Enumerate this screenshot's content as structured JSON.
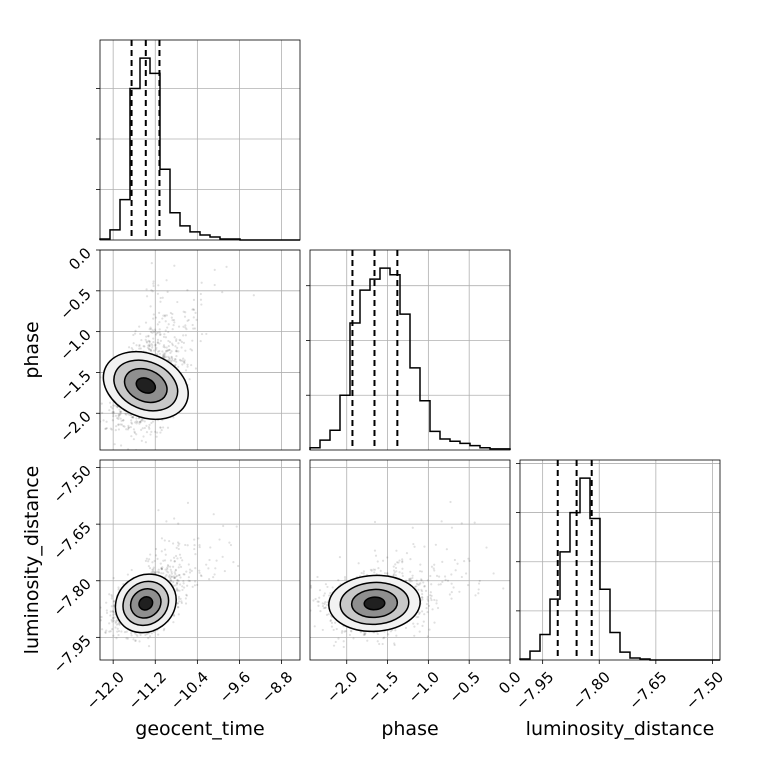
{
  "chart_data": {
    "type": "scatter",
    "subtype": "corner-plot",
    "grid": true,
    "parameters": [
      {
        "name": "geocent_time",
        "ticks": [
          -12.0,
          -11.2,
          -10.4,
          -9.6,
          -8.8
        ],
        "tick_labels": [
          "−12.0",
          "−11.2",
          "−10.4",
          "−9.6",
          "−8.8"
        ],
        "range": [
          -12.25,
          -8.45
        ],
        "median": -11.38,
        "q16": -11.65,
        "q84": -11.12
      },
      {
        "name": "phase",
        "ticks": [
          -2.0,
          -1.5,
          -1.0,
          -0.5,
          0.0
        ],
        "tick_labels": [
          "−2.0",
          "−1.5",
          "−1.0",
          "−0.5",
          "0.0"
        ],
        "range": [
          -2.45,
          0.0
        ],
        "median": -1.66,
        "q16": -1.93,
        "q84": -1.38
      },
      {
        "name": "luminosity_distance",
        "ticks": [
          -7.95,
          -7.8,
          -7.65,
          -7.5
        ],
        "tick_labels": [
          "−7.95",
          "−7.80",
          "−7.65",
          "−7.50"
        ],
        "range": [
          -8.01,
          -7.48
        ],
        "median": -7.86,
        "q16": -7.91,
        "q84": -7.82
      }
    ],
    "histograms": [
      {
        "parameter": "geocent_time",
        "bins": [
          -12.25,
          -12.06,
          -11.87,
          -11.68,
          -11.49,
          -11.3,
          -11.11,
          -10.92,
          -10.73,
          -10.54,
          -10.35,
          -10.16,
          -9.97,
          -9.78,
          -9.59,
          -9.4,
          -9.21,
          -9.02,
          -8.83,
          -8.64,
          -8.45
        ],
        "counts": [
          1,
          10,
          40,
          150,
          180,
          165,
          70,
          27,
          14,
          8,
          5,
          3,
          1,
          1,
          0,
          0,
          0,
          0,
          0,
          0
        ]
      },
      {
        "parameter": "phase",
        "bins": [
          -2.45,
          -2.3275,
          -2.205,
          -2.0825,
          -1.96,
          -1.8375,
          -1.715,
          -1.5925,
          -1.47,
          -1.3475,
          -1.225,
          -1.1025,
          -0.98,
          -0.8575,
          -0.735,
          -0.6125,
          -0.49,
          -0.3675,
          -0.245,
          -0.1225,
          0.0
        ],
        "counts": [
          2,
          9,
          18,
          50,
          116,
          146,
          156,
          166,
          160,
          124,
          75,
          45,
          17,
          10,
          8,
          6,
          4,
          2,
          1,
          1
        ]
      },
      {
        "parameter": "luminosity_distance",
        "bins": [
          -8.01,
          -7.9835,
          -7.957,
          -7.9305,
          -7.904,
          -7.8775,
          -7.851,
          -7.8245,
          -7.798,
          -7.7715,
          -7.745,
          -7.7185,
          -7.692,
          -7.6655,
          -7.639,
          -7.6125,
          -7.586,
          -7.5595,
          -7.533,
          -7.5065,
          -7.48
        ],
        "counts": [
          1,
          9,
          26,
          62,
          110,
          150,
          185,
          144,
          72,
          28,
          8,
          2,
          1,
          0,
          0,
          0,
          0,
          0,
          0,
          0
        ]
      }
    ],
    "density_peaks": [
      {
        "x": "geocent_time",
        "y": "phase",
        "center": [
          -11.38,
          -1.66
        ],
        "sigma": [
          0.3,
          0.27
        ],
        "rho": 0.35
      },
      {
        "x": "geocent_time",
        "y": "luminosity_distance",
        "center": [
          -11.38,
          -7.86
        ],
        "sigma": [
          0.3,
          0.037
        ],
        "rho": 0.4
      },
      {
        "x": "phase",
        "y": "luminosity_distance",
        "center": [
          -1.66,
          -7.86
        ],
        "sigma": [
          0.28,
          0.037
        ],
        "rho": 0.05
      }
    ]
  }
}
